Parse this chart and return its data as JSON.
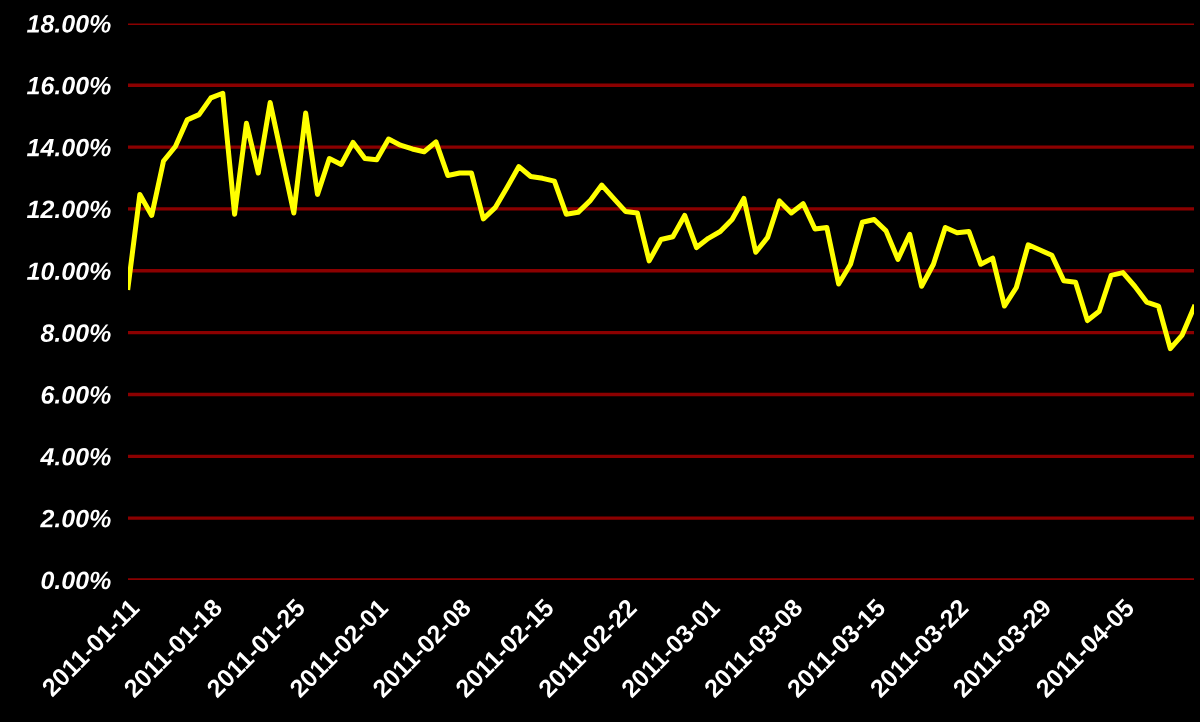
{
  "chart_data": {
    "type": "line",
    "x": [
      "2011-01-11",
      "2011-01-12",
      "2011-01-13",
      "2011-01-14",
      "2011-01-15",
      "2011-01-16",
      "2011-01-17",
      "2011-01-18",
      "2011-01-19",
      "2011-01-20",
      "2011-01-21",
      "2011-01-22",
      "2011-01-23",
      "2011-01-24",
      "2011-01-25",
      "2011-01-26",
      "2011-01-27",
      "2011-01-28",
      "2011-01-29",
      "2011-01-30",
      "2011-01-31",
      "2011-02-01",
      "2011-02-02",
      "2011-02-03",
      "2011-02-04",
      "2011-02-05",
      "2011-02-06",
      "2011-02-07",
      "2011-02-08",
      "2011-02-09",
      "2011-02-10",
      "2011-02-11",
      "2011-02-12",
      "2011-02-13",
      "2011-02-14",
      "2011-02-15",
      "2011-02-16",
      "2011-02-17",
      "2011-02-18",
      "2011-02-19",
      "2011-02-20",
      "2011-02-21",
      "2011-02-22",
      "2011-02-23",
      "2011-02-24",
      "2011-02-25",
      "2011-02-26",
      "2011-02-27",
      "2011-02-28",
      "2011-03-01",
      "2011-03-02",
      "2011-03-03",
      "2011-03-04",
      "2011-03-05",
      "2011-03-06",
      "2011-03-07",
      "2011-03-08",
      "2011-03-09",
      "2011-03-10",
      "2011-03-11",
      "2011-03-12",
      "2011-03-13",
      "2011-03-14",
      "2011-03-15",
      "2011-03-16",
      "2011-03-17",
      "2011-03-18",
      "2011-03-19",
      "2011-03-20",
      "2011-03-21",
      "2011-03-22",
      "2011-03-23",
      "2011-03-24",
      "2011-03-25",
      "2011-03-26",
      "2011-03-27",
      "2011-03-28",
      "2011-03-29",
      "2011-03-30",
      "2011-03-31",
      "2011-04-01",
      "2011-04-02",
      "2011-04-03",
      "2011-04-04",
      "2011-04-05",
      "2011-04-06",
      "2011-04-07",
      "2011-04-08",
      "2011-04-09",
      "2011-04-10",
      "2011-04-11"
    ],
    "series": [
      {
        "color": "#ffff00",
        "values": [
          9.46,
          12.47,
          11.79,
          13.55,
          14.02,
          14.88,
          15.05,
          15.59,
          15.74,
          11.83,
          14.77,
          13.16,
          15.44,
          13.66,
          11.87,
          15.1,
          12.47,
          13.63,
          13.44,
          14.15,
          13.63,
          13.59,
          14.26,
          14.06,
          13.94,
          13.85,
          14.17,
          13.08,
          13.16,
          13.16,
          11.68,
          12.04,
          12.69,
          13.37,
          13.05,
          12.99,
          12.9,
          11.83,
          11.89,
          12.26,
          12.77,
          12.34,
          11.92,
          11.87,
          10.32,
          11.01,
          11.1,
          11.79,
          10.75,
          11.05,
          11.27,
          11.66,
          12.34,
          10.6,
          11.08,
          12.26,
          11.87,
          12.17,
          11.35,
          11.4,
          9.57,
          10.21,
          11.57,
          11.66,
          11.29,
          10.37,
          11.18,
          9.5,
          10.21,
          11.4,
          11.23,
          11.27,
          10.21,
          10.41,
          8.86,
          9.46,
          10.84,
          10.67,
          10.5,
          9.68,
          9.63,
          8.39,
          8.69,
          9.85,
          9.94,
          9.5,
          8.99,
          8.86,
          7.48,
          7.92,
          8.82
        ]
      }
    ],
    "xlim": [
      "2011-01-11",
      "2011-04-11"
    ],
    "xticks": [
      "2011-01-11",
      "2011-01-18",
      "2011-01-25",
      "2011-02-01",
      "2011-02-08",
      "2011-02-15",
      "2011-02-22",
      "2011-03-01",
      "2011-03-08",
      "2011-03-15",
      "2011-03-22",
      "2011-03-29",
      "2011-04-05"
    ],
    "ylim": [
      0,
      18
    ],
    "yticks": [
      {
        "value": 0,
        "label": "0.00%"
      },
      {
        "value": 2,
        "label": "2.00%"
      },
      {
        "value": 4,
        "label": "4.00%"
      },
      {
        "value": 6,
        "label": "6.00%"
      },
      {
        "value": 8,
        "label": "8.00%"
      },
      {
        "value": 10,
        "label": "10.00%"
      },
      {
        "value": 12,
        "label": "12.00%"
      },
      {
        "value": 14,
        "label": "14.00%"
      },
      {
        "value": 16,
        "label": "16.00%"
      },
      {
        "value": 18,
        "label": "18.00%"
      }
    ],
    "grid": "y",
    "marker": "none",
    "line_style": "solid"
  }
}
